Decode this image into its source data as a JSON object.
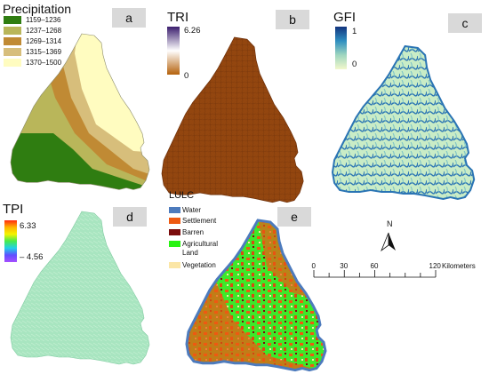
{
  "panels": {
    "a": {
      "badge": "a",
      "title": "Precipitation",
      "classes": [
        {
          "label": "1159–1236",
          "color": "#2f7d11"
        },
        {
          "label": "1237–1268",
          "color": "#b9b65a"
        },
        {
          "label": "1269–1314",
          "color": "#c08a34"
        },
        {
          "label": "1315–1369",
          "color": "#d7be7b"
        },
        {
          "label": "1370–1500",
          "color": "#fffcc0"
        }
      ]
    },
    "b": {
      "badge": "b",
      "title": "TRI",
      "max": "6.26",
      "min": "0",
      "ramp": [
        "#3b1e6e",
        "#ffffff",
        "#b4610c"
      ],
      "fill": "#93460f"
    },
    "c": {
      "badge": "c",
      "title": "GFI",
      "max": "1",
      "min": "0",
      "ramp": [
        "#12347e",
        "#2f8ec0",
        "#9fd6bf",
        "#f2f8cc"
      ],
      "fill": "#9fd6c6",
      "stroke": "#2a74b4"
    },
    "d": {
      "badge": "d",
      "title": "TPI",
      "max": "6.33",
      "min": "– 4.56",
      "ramp": [
        "#ff2a10",
        "#ffb400",
        "#f4f400",
        "#46ea4c",
        "#20d0e8",
        "#5f4eff",
        "#a64eff"
      ],
      "fill": "#a8e5c0"
    },
    "e": {
      "badge": "e",
      "title": "LULC",
      "classes": [
        {
          "label": "Water",
          "color": "#4d7bbd"
        },
        {
          "label": "Settlement",
          "color": "#ee5a12"
        },
        {
          "label": "Barren",
          "color": "#7b0c0c"
        },
        {
          "label": "Agricultural\nLand",
          "color": "#28f312"
        },
        {
          "label": "Vegetation",
          "color": "#fbe6a6"
        }
      ]
    }
  },
  "north_arrow": {
    "label": "N"
  },
  "scale_bar": {
    "ticks": [
      "0",
      "30",
      "60",
      "120"
    ],
    "unit": "Kilometers"
  }
}
